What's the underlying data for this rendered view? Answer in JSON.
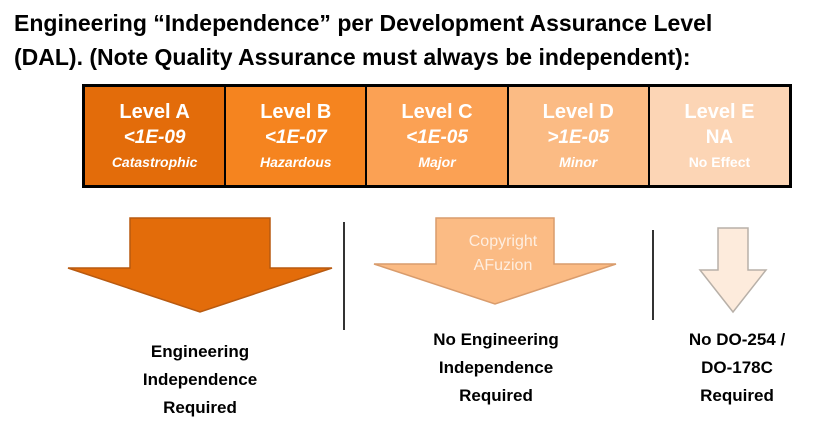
{
  "title": {
    "line1": "Engineering “Independence” per Development Assurance Level",
    "line2": "(DAL).  (Note Quality Assurance must always be independent):"
  },
  "levels": [
    {
      "name": "Level A",
      "probability": "<1E-09",
      "severity": "Catastrophic",
      "color": "#e36c0a"
    },
    {
      "name": "Level B",
      "probability": "<1E-07",
      "severity": "Hazardous",
      "color": "#f5841f"
    },
    {
      "name": "Level C",
      "probability": "<1E-05",
      "severity": "Major",
      "color": "#fba154"
    },
    {
      "name": "Level D",
      "probability": ">1E-05",
      "severity": "Minor",
      "color": "#fbbb84"
    },
    {
      "name": "Level E",
      "probability": "NA",
      "severity": "No Effect",
      "color": "#fcd5b5"
    }
  ],
  "watermark": {
    "line1": "Copyright",
    "line2": "AFuzion"
  },
  "outcomes": [
    {
      "lines": [
        "Engineering",
        "Independence",
        "Required"
      ],
      "color": "#e36c0a"
    },
    {
      "lines": [
        "No Engineering",
        "Independence",
        "Required"
      ],
      "color": "#fbbb84"
    },
    {
      "lines": [
        "No DO-254 /",
        "DO-178C",
        "Required"
      ],
      "color": "#fdebdc"
    }
  ]
}
